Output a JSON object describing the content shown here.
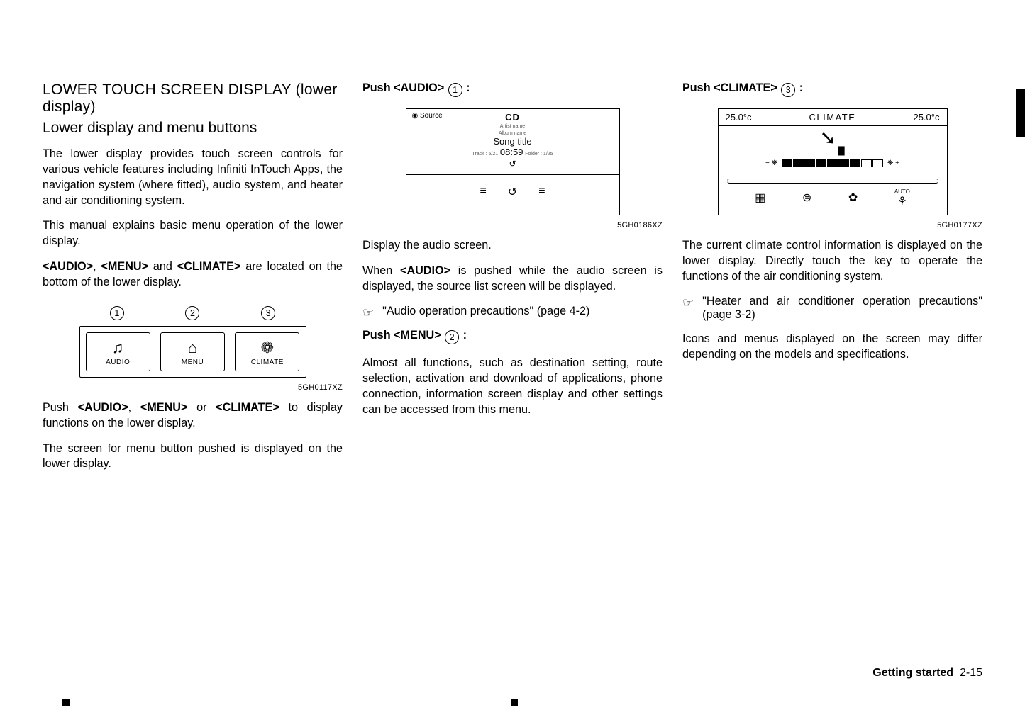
{
  "col1": {
    "heading1": "LOWER TOUCH SCREEN DISPLAY (lower display)",
    "heading2": "Lower display and menu buttons",
    "para1": "The lower display provides touch screen controls for various vehicle features including Infiniti InTouch Apps, the navigation system (where fitted), audio system, and heater and air conditioning system.",
    "para2": "This manual explains basic menu operation of the lower display.",
    "para3a": "<AUDIO>",
    "para3b": ", ",
    "para3c": "<MENU>",
    "para3d": " and ",
    "para3e": "<CLIMATE>",
    "para3f": " are located on the bottom of the lower display.",
    "fig": {
      "n1": "1",
      "n2": "2",
      "n3": "3",
      "b1_glyph": "♫",
      "b1_label": "AUDIO",
      "b2_glyph": "⌂",
      "b2_label": "MENU",
      "b3_glyph": "❁",
      "b3_label": "CLIMATE",
      "code": "5GH0117XZ"
    },
    "para4a": "Push ",
    "para4b": "<AUDIO>",
    "para4c": ", ",
    "para4d": "<MENU>",
    "para4e": " or ",
    "para4f": "<CLIMATE>",
    "para4g": " to display functions on the lower display.",
    "para5": "The screen for menu button pushed is displayed on the lower display."
  },
  "col2": {
    "push_label_pre": "Push ",
    "push_label_btn": "<AUDIO>",
    "push_label_num": "1",
    "push_label_post": " :",
    "fig": {
      "source": "◉ Source",
      "cd": "CD",
      "artist": "Artist name",
      "album": "Album name",
      "song": "Song title",
      "track": "Track : 5/21",
      "time": "08:59",
      "folder": "Folder : 1/25",
      "shuffle_glyph": "↺",
      "i1": "≡",
      "i2": "↺",
      "i3": "≡",
      "code": "5GH0186XZ"
    },
    "para1": "Display the audio screen.",
    "para2a": "When ",
    "para2b": "<AUDIO>",
    "para2c": " is pushed while the audio screen is displayed, the source list screen will be displayed.",
    "ref_icon": "☞",
    "ref_text": "\"Audio operation precautions\" (page 4-2)",
    "push2_pre": "Push ",
    "push2_btn": "<MENU>",
    "push2_num": "2",
    "push2_post": " :",
    "para3": "Almost all functions, such as destination setting, route selection, activation and download of applications, phone connection, information screen display and other settings can be accessed from this menu."
  },
  "col3": {
    "push_pre": "Push ",
    "push_btn": "<CLIMATE>",
    "push_num": "3",
    "push_post": " :",
    "fig": {
      "temp_l": "25.0°c",
      "title": "CLIMATE",
      "temp_r": "25.0°c",
      "fan_minus": "− ❋",
      "fan_plus": "❋ +",
      "seg_count": 9,
      "seg_on": 7,
      "i1_g": "▦",
      "i1_t": "",
      "i2_g": "⊜",
      "i2_t": "",
      "i3_g": "✿",
      "i3_t": "",
      "i4_g": "⚘",
      "i4_t": "AUTO",
      "code": "5GH0177XZ"
    },
    "para1": "The current climate control information is displayed on the lower display. Directly touch the key to operate the functions of the air conditioning system.",
    "ref_icon": "☞",
    "ref_text": "\"Heater and air conditioner operation precautions\" (page 3-2)",
    "para2": "Icons and menus displayed on the screen may differ depending on the models and specifications."
  },
  "footer": {
    "section": "Getting started",
    "page": "2-15"
  }
}
